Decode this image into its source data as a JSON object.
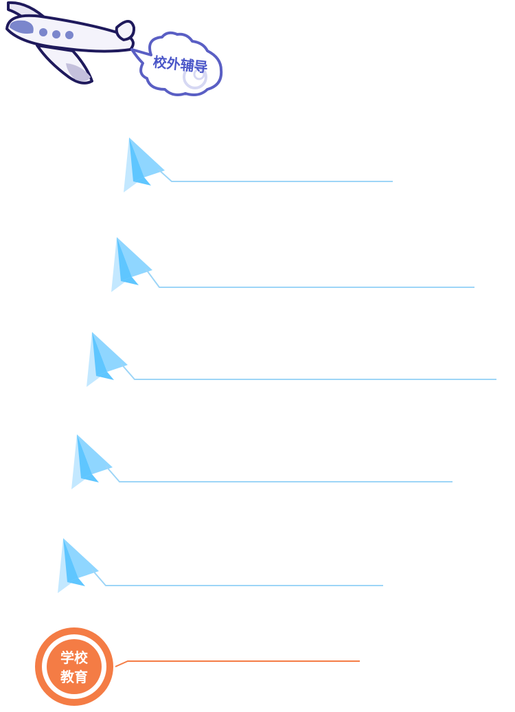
{
  "header": {
    "bubble_label": "校外辅导"
  },
  "items": [
    {
      "label": ""
    },
    {
      "label": ""
    },
    {
      "label": ""
    },
    {
      "label": ""
    },
    {
      "label": ""
    }
  ],
  "badge": {
    "line1": "学校",
    "line2": "教育"
  },
  "colors": {
    "plane_outline": "#1f1a5c",
    "plane_accent": "#7b86cc",
    "plane_shadow": "#c4c0dc",
    "bubble_outline": "#5a5fc4",
    "bubble_text": "#4a56c8",
    "paper_plane_dark": "#5fc6ff",
    "paper_plane_mid": "#8fd6ff",
    "paper_plane_light": "#c3e8ff",
    "rule_line": "#9dd5f7",
    "badge_orange": "#f47c45",
    "badge_text": "#ffffff"
  },
  "icons": {
    "airplane": "airplane-icon",
    "bubble": "speech-bubble-icon",
    "paper_plane": "paper-plane-icon",
    "badge": "school-badge-icon"
  }
}
